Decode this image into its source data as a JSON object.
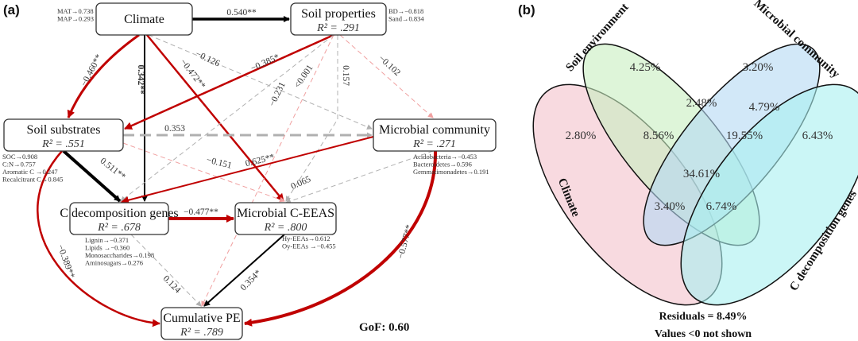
{
  "panel_a": {
    "label": "(a)",
    "gof": "GoF: 0.60",
    "nodes": {
      "climate": {
        "title": "Climate",
        "r2": "",
        "indicators": [
          "MAT→0.738",
          "MAP→0.293"
        ]
      },
      "soil_properties": {
        "title": "Soil properties",
        "r2": "R² = .291",
        "indicators": [
          "BD→−0.818",
          "Sand→0.834"
        ]
      },
      "soil_substrates": {
        "title": "Soil substrates",
        "r2": "R² = .551",
        "indicators": [
          "SOC→0.908",
          "C:N→0.757",
          "Aromatic C →0.247",
          "Recalcitrant C→0.845"
        ]
      },
      "microbial_community": {
        "title": "Microbial community",
        "r2": "R² = .271",
        "indicators": [
          "Acidobacteria→−0.453",
          "Bacteroidetes→0.596",
          "Gemmatimonadetes→0.191"
        ]
      },
      "c_decomposition_genes": {
        "title": "C decomposition genes",
        "r2": "R² = .678",
        "indicators": [
          "Lignin→−0.371",
          "Lipids →−0.360",
          "Monosaccharides→0.198",
          "Aminosugars→0.276"
        ]
      },
      "microbial_c_eeas": {
        "title": "Microbial C-EEAS",
        "r2": "R² = .800",
        "indicators": [
          "Hy-EEAs→0.612",
          "Oy-EEAs →−0.455"
        ]
      },
      "cumulative_pe": {
        "title": "Cumulative PE",
        "r2": "R² = .789",
        "indicators": []
      }
    },
    "edges": [
      {
        "from": "climate",
        "to": "soil_properties",
        "coef": "0.540**",
        "style": "solid",
        "color": "#000000"
      },
      {
        "from": "climate",
        "to": "soil_substrates",
        "coef": "−0.460**",
        "style": "solid",
        "color": "#c00000"
      },
      {
        "from": "climate",
        "to": "c_decomposition_genes",
        "coef": "0.342**",
        "style": "solid",
        "color": "#000000"
      },
      {
        "from": "climate",
        "to": "microbial_c_eeas",
        "coef": "−0.472**",
        "style": "solid",
        "color": "#c00000"
      },
      {
        "from": "climate",
        "to": "microbial_community",
        "coef": "−0.126",
        "style": "dashed",
        "color": "#b0b0b0"
      },
      {
        "from": "soil_properties",
        "to": "soil_substrates",
        "coef": "−0.385*",
        "style": "solid",
        "color": "#c00000"
      },
      {
        "from": "soil_properties",
        "to": "c_decomposition_genes",
        "coef": "<0.001",
        "style": "dashed",
        "color": "#b0b0b0"
      },
      {
        "from": "soil_properties",
        "to": "microbial_c_eeas",
        "coef": "0.157",
        "style": "dashed",
        "color": "#b0b0b0"
      },
      {
        "from": "soil_properties",
        "to": "cumulative_pe",
        "coef": "−0.231",
        "style": "dashed",
        "color": "#f0a0a0"
      },
      {
        "from": "soil_properties",
        "to": "microbial_community",
        "coef": "−0.102",
        "style": "dashed",
        "color": "#f0a0a0"
      },
      {
        "from": "soil_substrates",
        "to": "microbial_community",
        "coef": "0.353",
        "style": "dashed",
        "color": "#b0b0b0"
      },
      {
        "from": "soil_substrates",
        "to": "microbial_c_eeas",
        "coef": "−0.151",
        "style": "dashed",
        "color": "#f0a0a0"
      },
      {
        "from": "soil_substrates",
        "to": "c_decomposition_genes",
        "coef": "0.511**",
        "style": "solid",
        "color": "#000000"
      },
      {
        "from": "soil_substrates",
        "to": "cumulative_pe",
        "coef": "−0.389**",
        "style": "solid",
        "color": "#c00000"
      },
      {
        "from": "microbial_community",
        "to": "c_decomposition_genes",
        "coef": "0.625**",
        "style": "solid",
        "color": "#c00000"
      },
      {
        "from": "microbial_community",
        "to": "microbial_c_eeas",
        "coef": "0.065",
        "style": "dashed",
        "color": "#b0b0b0"
      },
      {
        "from": "microbial_community",
        "to": "cumulative_pe",
        "coef": "−0.577**",
        "style": "solid",
        "color": "#c00000"
      },
      {
        "from": "c_decomposition_genes",
        "to": "microbial_c_eeas",
        "coef": "−0.477**",
        "style": "solid",
        "color": "#c00000"
      },
      {
        "from": "c_decomposition_genes",
        "to": "cumulative_pe",
        "coef": "0.124",
        "style": "dashed",
        "color": "#b0b0b0"
      },
      {
        "from": "microbial_c_eeas",
        "to": "cumulative_pe",
        "coef": "0.354*",
        "style": "solid",
        "color": "#000000"
      }
    ]
  },
  "panel_b": {
    "label": "(b)",
    "sets": [
      {
        "name": "Climate",
        "color": "#f4c2cc"
      },
      {
        "name": "Soil environment",
        "color": "#c8efc0"
      },
      {
        "name": "Microbial community",
        "color": "#b4d8f4"
      },
      {
        "name": "C decomposition genes",
        "color": "#a8f0f0"
      }
    ],
    "regions": {
      "climate_only": "2.80%",
      "soil_only": "4.25%",
      "microbial_only": "3.20%",
      "genes_only": "6.43%",
      "soil_microbial": "2.48%",
      "climate_soil": "8.56%",
      "microbial_genes": "4.79%",
      "soil_microbial_genes": "19.55%",
      "all_four": "34.61%",
      "climate_microbial_genes": "3.40%",
      "climate_soil_genes": "6.74%"
    },
    "residuals": "Residuals = 8.49%",
    "note": "Values <0 not shown"
  }
}
